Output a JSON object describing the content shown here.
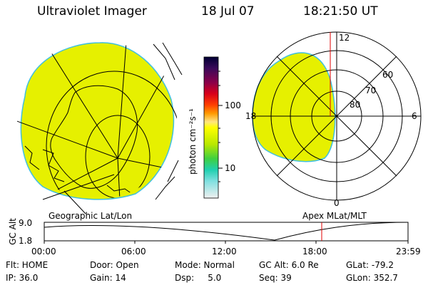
{
  "header": {
    "instrument": "Ultraviolet Imager",
    "date": "18 Jul 07",
    "time": "18:21:50 UT"
  },
  "colorbar": {
    "unit_label": "photon cm⁻²s⁻¹",
    "ticks": [
      "100",
      "10"
    ],
    "colors": [
      "#000033",
      "#2b0a4a",
      "#5a1a6e",
      "#8a0050",
      "#b8002a",
      "#e00000",
      "#ff5a00",
      "#ff9f00",
      "#ffe066",
      "#ffff00",
      "#d8f000",
      "#a0e000",
      "#40d050",
      "#20d0c0",
      "#60e0e0",
      "#c8f0f0",
      "#f4f4f4"
    ]
  },
  "geo_panel": {
    "caption": "Geographic Lat/Lon",
    "fill_color": "#e6f000"
  },
  "mlt_panel": {
    "caption": "Apex MLat/MLT",
    "hour_labels": {
      "top": "12",
      "left": "18",
      "right": "6",
      "bottom": "0"
    },
    "lat_labels": [
      "60",
      "70",
      "80"
    ],
    "fill_color": "#e6f000"
  },
  "orbit_plot": {
    "ylabel": "GC Alt",
    "yticks": [
      "9.0",
      "1.8"
    ],
    "xticks": [
      "00:00",
      "06:00",
      "12:00",
      "18:00",
      "23:59"
    ],
    "current_time_fraction": 0.764
  },
  "info": {
    "flt": "Flt: HOME",
    "ip": "IP: 36.0",
    "door": "Door: Open",
    "gain": "Gain: 14",
    "mode": "Mode: Normal",
    "dsp": "Dsp:     5.0",
    "gcalt": "GC Alt: 6.0 Re",
    "seq": "Seq: 39",
    "glat": "GLat: -79.2",
    "glon": "GLon: 352.7"
  }
}
